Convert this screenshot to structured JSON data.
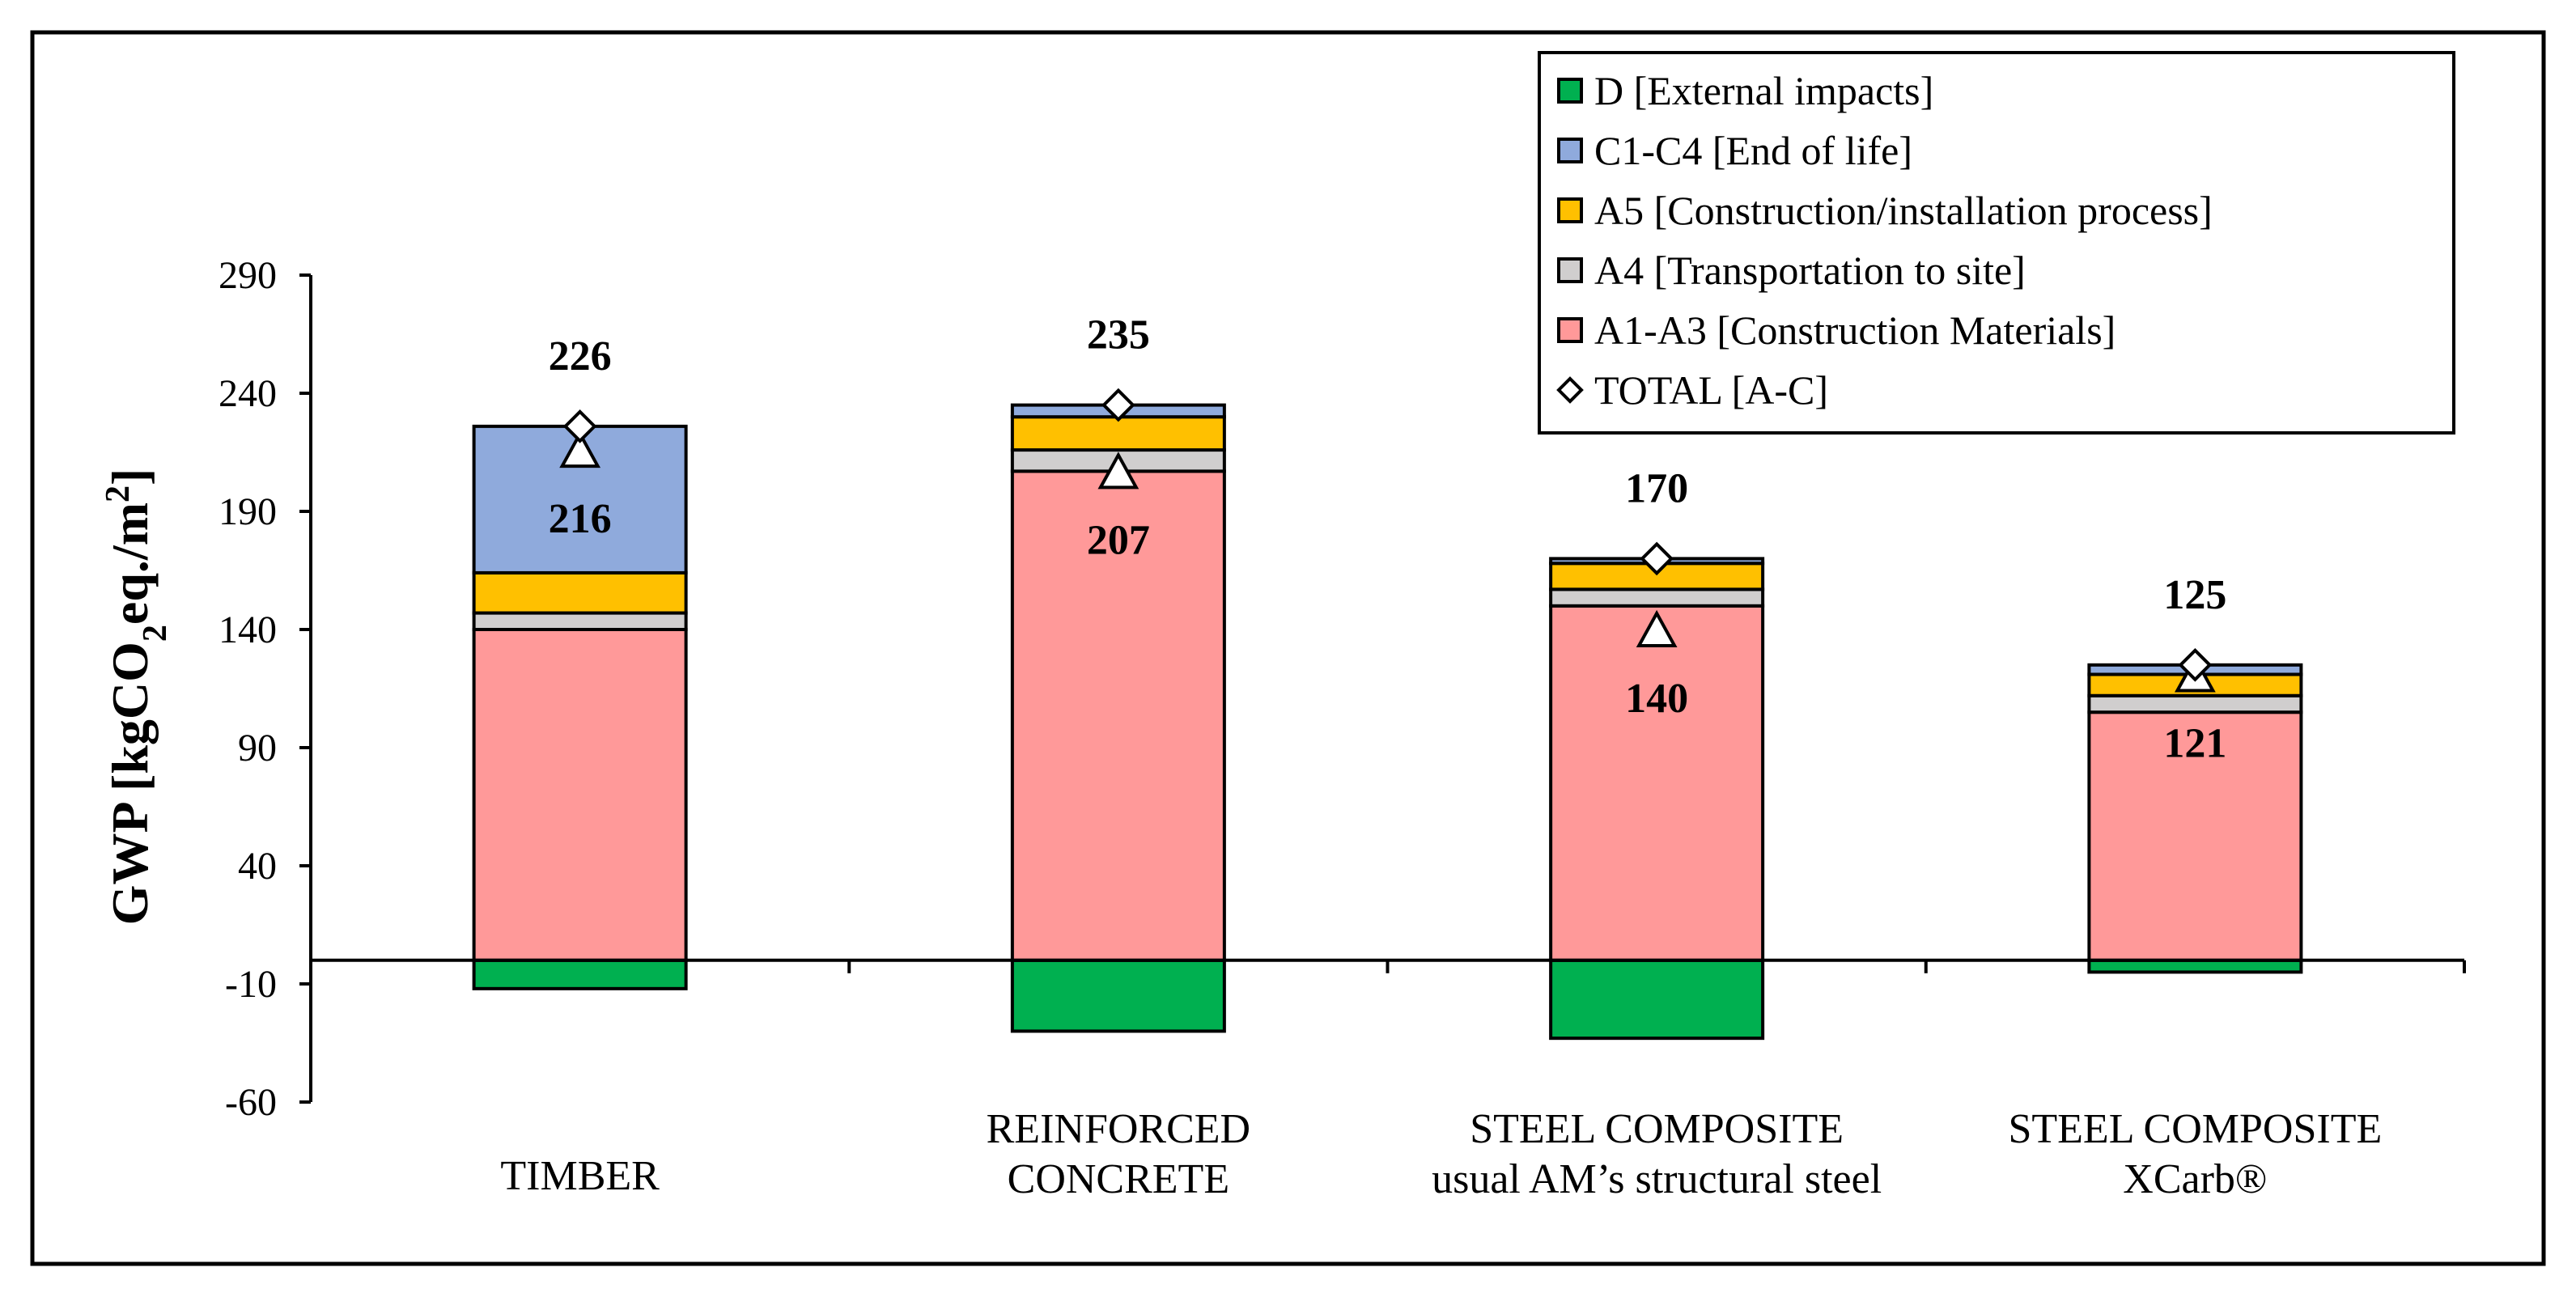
{
  "chart_data": {
    "type": "bar",
    "stacked": true,
    "ylabel_parts": [
      "GWP [kgCO",
      "2",
      "eq./m",
      "2",
      "]"
    ],
    "ylim": [
      -60,
      290
    ],
    "yticks": [
      290,
      240,
      190,
      140,
      90,
      40,
      -10,
      -60
    ],
    "categories": [
      [
        "TIMBER"
      ],
      [
        "REINFORCED",
        "CONCRETE"
      ],
      [
        "STEEL  COMPOSITE",
        "usual AM’s structural steel"
      ],
      [
        "STEEL  COMPOSITE",
        "XCarb®"
      ]
    ],
    "series": [
      {
        "name": "D [External impacts]",
        "color": "#00b050",
        "values": [
          -12,
          -30,
          -33,
          -5
        ]
      },
      {
        "name": "A1-A3 [Construction Materials]",
        "color": "#ff9999",
        "values": [
          140,
          207,
          150,
          105
        ]
      },
      {
        "name": "A4 [Transportation to site]",
        "color": "#d0cece",
        "values": [
          7,
          9,
          7,
          7
        ]
      },
      {
        "name": "A5 [Construction/installation process]",
        "color": "#ffc000",
        "values": [
          17,
          14,
          11,
          9
        ]
      },
      {
        "name": "C1-C4 [End of life]",
        "color": "#8faadc",
        "values": [
          62,
          5,
          2,
          4
        ]
      }
    ],
    "legend_order": [
      {
        "name": "D [External impacts]",
        "marker": "square",
        "color": "#00b050"
      },
      {
        "name": "C1-C4 [End of life]",
        "marker": "square",
        "color": "#8faadc"
      },
      {
        "name": "A5 [Construction/installation process]",
        "marker": "square",
        "color": "#ffc000"
      },
      {
        "name": "A4 [Transportation to site]",
        "marker": "square",
        "color": "#d0cece"
      },
      {
        "name": "A1-A3 [Construction Materials]",
        "marker": "square",
        "color": "#ff9999"
      },
      {
        "name": "TOTAL [A-C]",
        "marker": "diamond",
        "color": "#ffffff"
      }
    ],
    "total_values": [
      226,
      235,
      170,
      125
    ],
    "triangle_values": [
      216,
      207,
      140,
      121
    ],
    "legend_position": "top-right"
  }
}
